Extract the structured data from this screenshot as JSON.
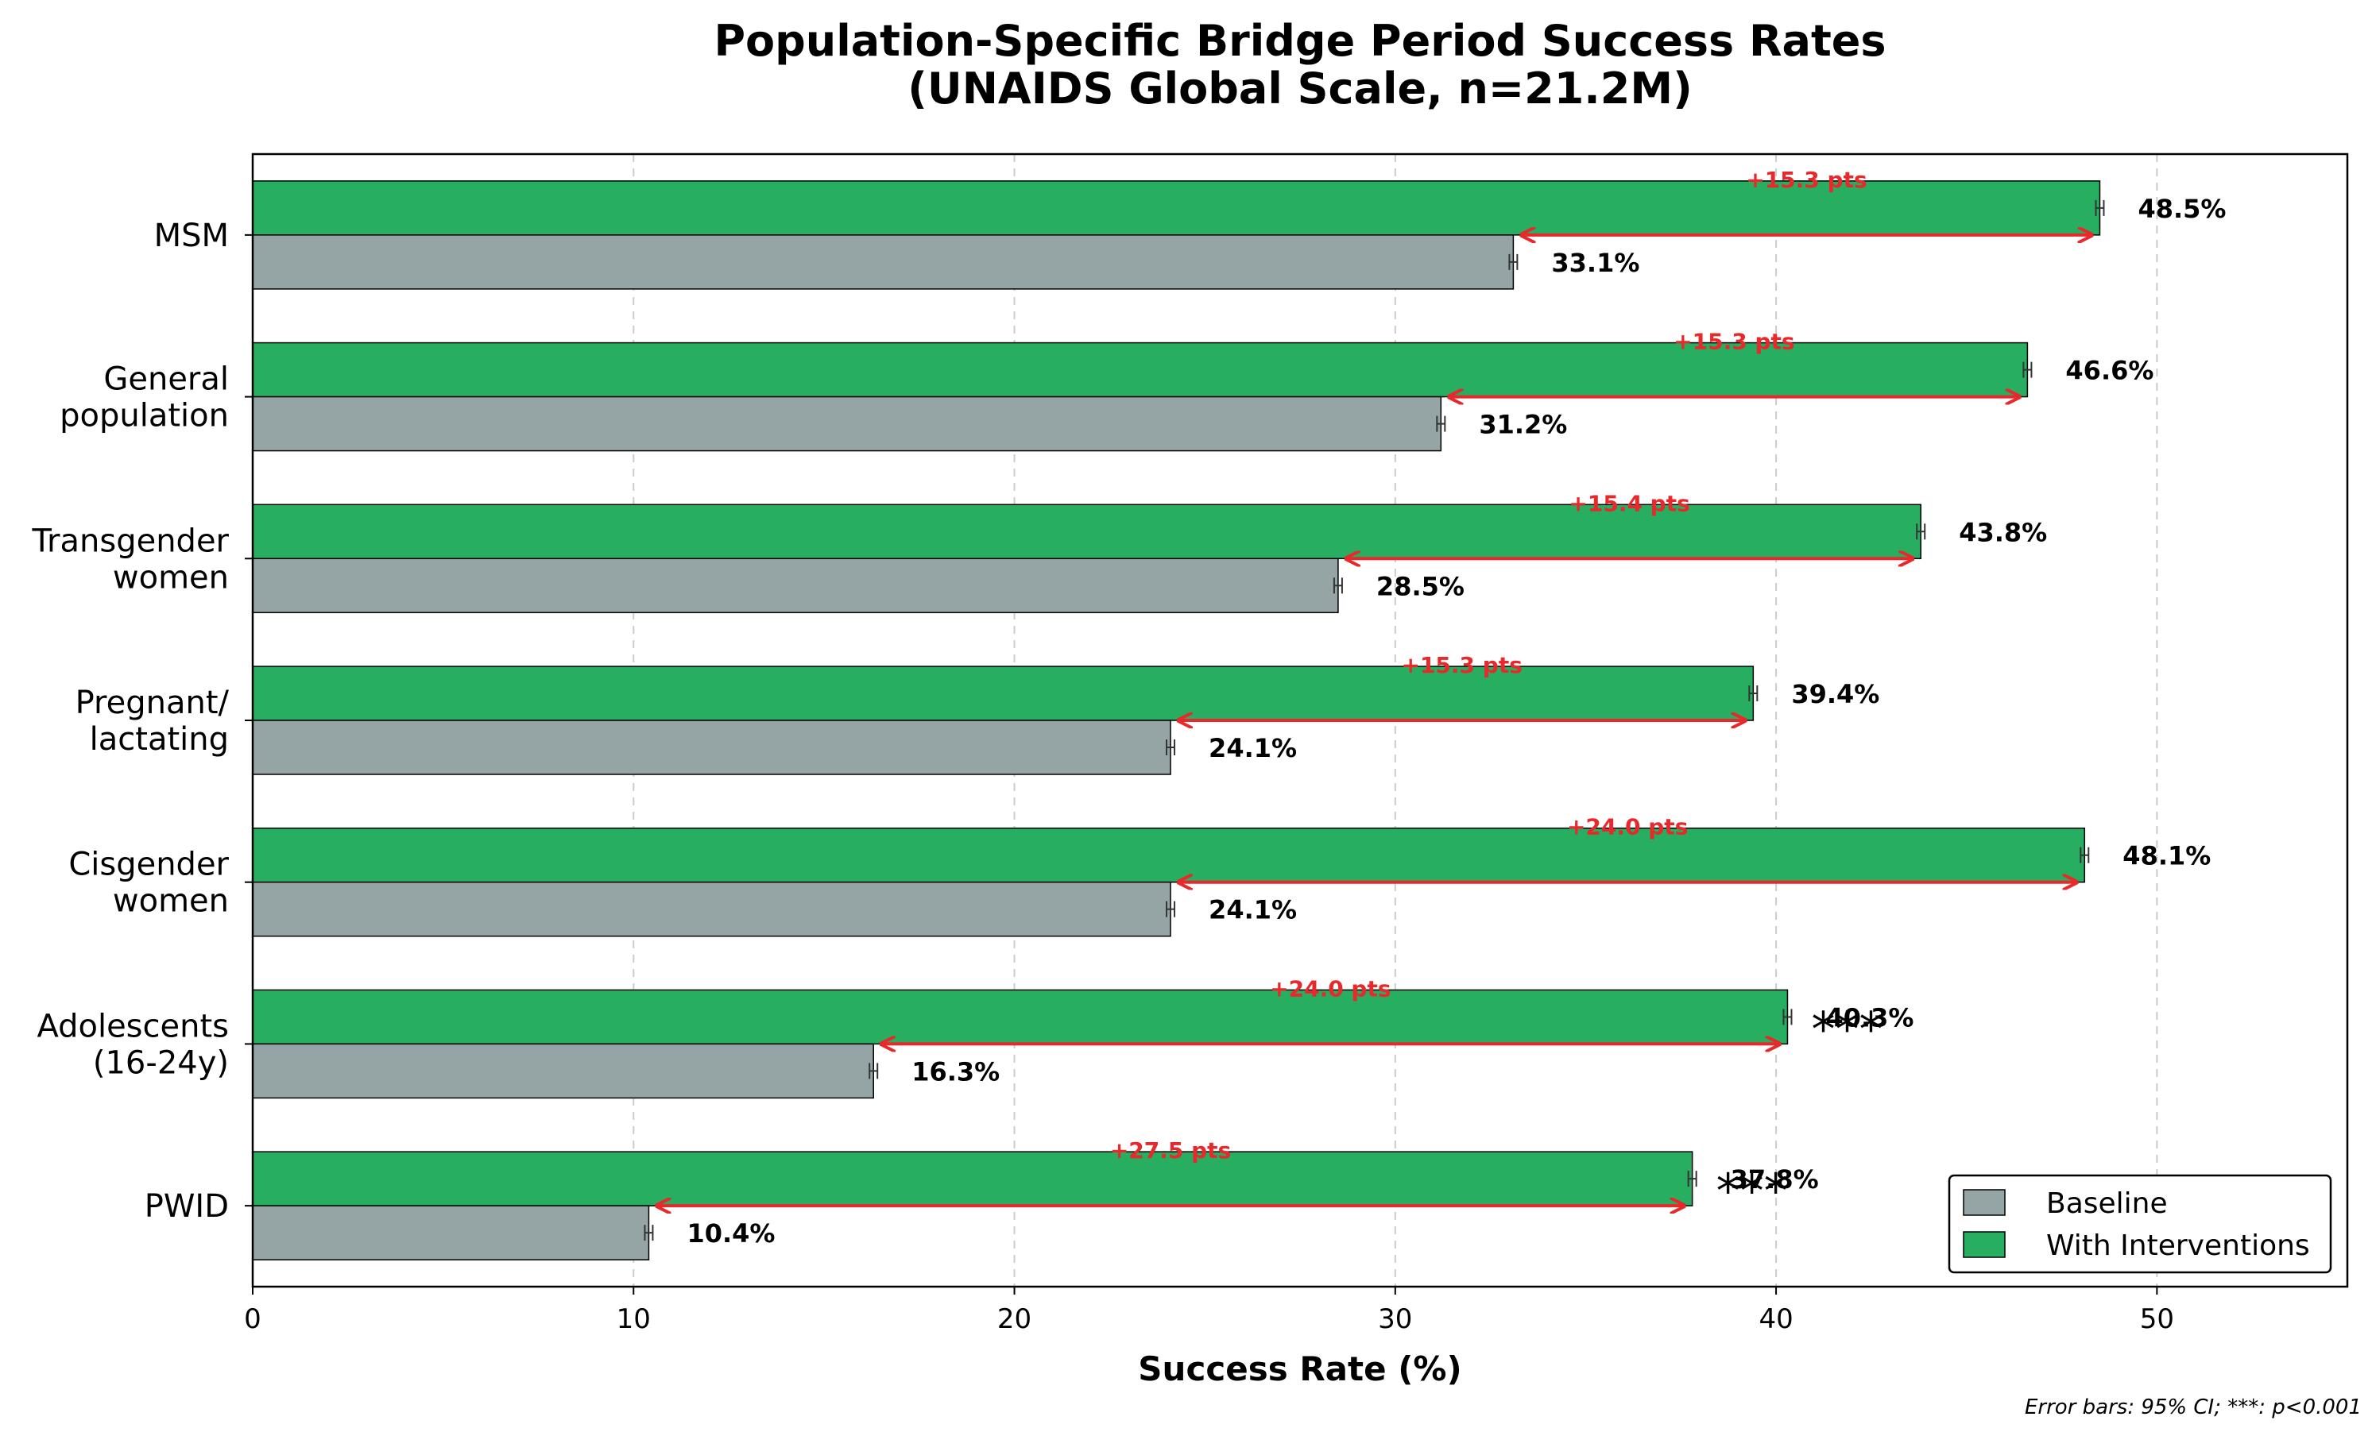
{
  "chart_data": {
    "type": "bar",
    "orientation": "horizontal",
    "title_line1": "Population-Specific Bridge Period Success Rates",
    "title_line2": "(UNAIDS Global Scale, n=21.2M)",
    "xlabel": "Success Rate (%)",
    "ylabel": "",
    "xlim": [
      0,
      55
    ],
    "xticks": [
      0,
      10,
      20,
      30,
      40,
      50
    ],
    "grid": "x-dashed",
    "legend_position": "bottom-right",
    "categories": [
      [
        "MSM"
      ],
      [
        "General",
        "population"
      ],
      [
        "Transgender",
        "women"
      ],
      [
        "Pregnant/",
        "lactating"
      ],
      [
        "Cisgender",
        "women"
      ],
      [
        "Adolescents",
        "(16-24y)"
      ],
      [
        "PWID"
      ]
    ],
    "series": [
      {
        "name": "Baseline",
        "color": "#95a5a6",
        "values": [
          33.1,
          31.2,
          28.5,
          24.1,
          24.1,
          16.3,
          10.4
        ],
        "labels": [
          "33.1%",
          "31.2%",
          "28.5%",
          "24.1%",
          "24.1%",
          "16.3%",
          "10.4%"
        ]
      },
      {
        "name": "With Interventions",
        "color": "#27ae60",
        "values": [
          48.5,
          46.6,
          43.8,
          39.4,
          48.1,
          40.3,
          37.8
        ],
        "labels": [
          "48.5%",
          "46.6%",
          "43.8%",
          "39.4%",
          "48.1%",
          "40.3%",
          "37.8%"
        ]
      }
    ],
    "gain_labels": [
      "+15.3 pts",
      "+15.3 pts",
      "+15.4 pts",
      "+15.3 pts",
      "+24.0 pts",
      "+24.0 pts",
      "+27.5 pts"
    ],
    "gain_color": "#e8282b",
    "significance": [
      "",
      "",
      "",
      "",
      "",
      "***",
      "***"
    ],
    "footnote": "Error bars: 95% CI; ***: p<0.001"
  }
}
